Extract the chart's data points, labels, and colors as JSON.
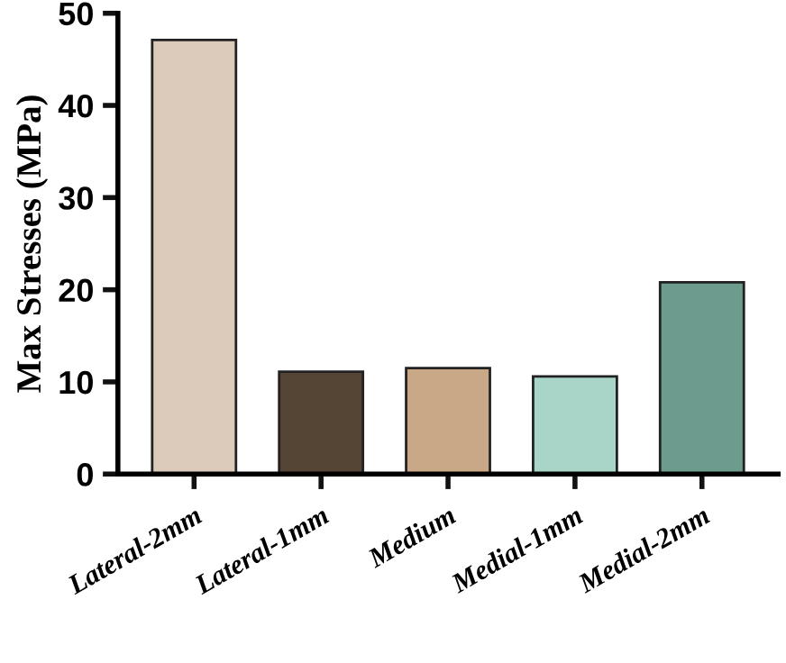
{
  "chart_data": {
    "type": "bar",
    "ylabel": "Max Stresses (MPa)",
    "categories": [
      "Lateral-2mm",
      "Lateral-1mm",
      "Medium",
      "Medial-1mm",
      "Medial-2mm"
    ],
    "values": [
      47.1,
      11.1,
      11.5,
      10.6,
      20.8
    ],
    "colors": [
      "#dccbbb",
      "#554535",
      "#c9a888",
      "#a8d5c8",
      "#6d9c8e"
    ],
    "ylim": [
      0,
      50
    ],
    "yticks": [
      0,
      10,
      20,
      30,
      40,
      50
    ],
    "grid": false
  }
}
